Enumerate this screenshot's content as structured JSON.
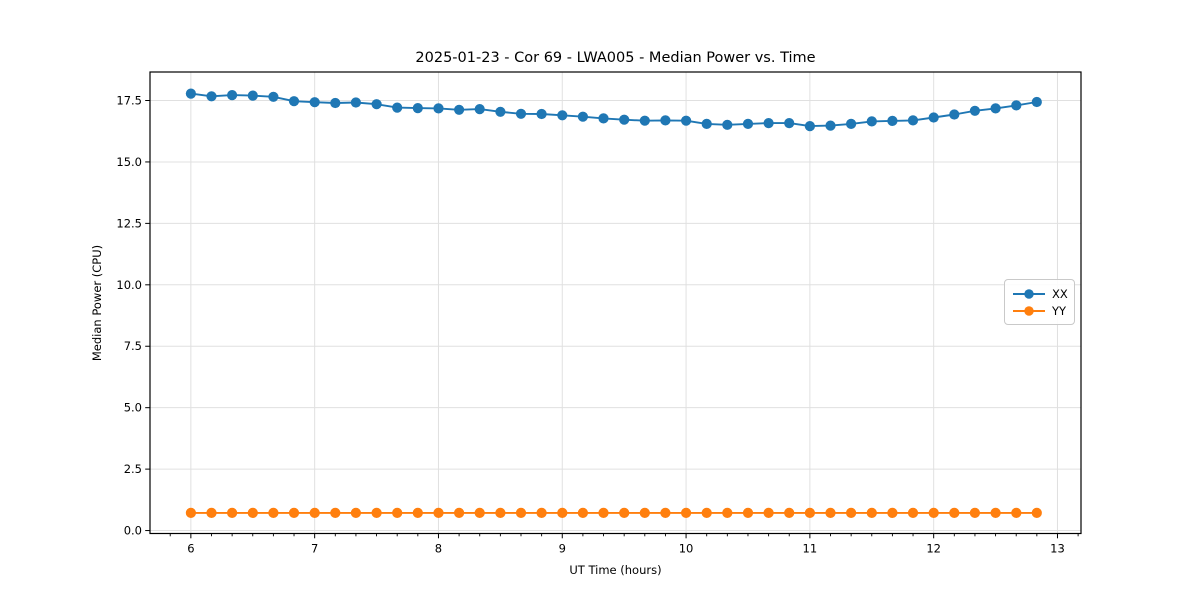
{
  "figure": {
    "title": "2025-01-23 - Cor 69 - LWA005 - Median Power vs. Time"
  },
  "chart_data": {
    "type": "line",
    "title": "2025-01-23 - Cor 69 - LWA005 - Median Power vs. Time",
    "xlabel": "UT Time (hours)",
    "ylabel": "Median Power (CPU)",
    "xlim": [
      5.67,
      13.19
    ],
    "ylim": [
      -0.12,
      18.66
    ],
    "xticks": [
      6,
      7,
      8,
      9,
      10,
      11,
      12,
      13
    ],
    "yticks": [
      0.0,
      2.5,
      5.0,
      7.5,
      10.0,
      12.5,
      15.0,
      17.5
    ],
    "x_minor_step_hours": 0.1667,
    "grid": true,
    "grid_color": "#e0e0e0",
    "legend_position": "center right",
    "marker": "circle",
    "x": [
      6.0,
      6.167,
      6.333,
      6.5,
      6.667,
      6.833,
      7.0,
      7.167,
      7.333,
      7.5,
      7.667,
      7.833,
      8.0,
      8.167,
      8.333,
      8.5,
      8.667,
      8.833,
      9.0,
      9.167,
      9.333,
      9.5,
      9.667,
      9.833,
      10.0,
      10.167,
      10.333,
      10.5,
      10.667,
      10.833,
      11.0,
      11.167,
      11.333,
      11.5,
      11.667,
      11.833,
      12.0,
      12.167,
      12.333,
      12.5,
      12.667,
      12.833
    ],
    "series": [
      {
        "name": "XX",
        "color": "#1f77b4",
        "values": [
          17.78,
          17.67,
          17.72,
          17.7,
          17.65,
          17.47,
          17.43,
          17.4,
          17.42,
          17.35,
          17.21,
          17.19,
          17.18,
          17.12,
          17.15,
          17.04,
          16.96,
          16.95,
          16.9,
          16.84,
          16.77,
          16.72,
          16.68,
          16.69,
          16.68,
          16.55,
          16.51,
          16.55,
          16.58,
          16.58,
          16.46,
          16.48,
          16.55,
          16.65,
          16.67,
          16.69,
          16.81,
          16.93,
          17.08,
          17.18,
          17.3,
          17.44
        ]
      },
      {
        "name": "YY",
        "color": "#ff7f0e",
        "values": [
          0.72,
          0.72,
          0.72,
          0.72,
          0.72,
          0.72,
          0.72,
          0.72,
          0.72,
          0.72,
          0.72,
          0.72,
          0.72,
          0.72,
          0.72,
          0.72,
          0.72,
          0.72,
          0.72,
          0.72,
          0.72,
          0.72,
          0.72,
          0.72,
          0.72,
          0.72,
          0.72,
          0.72,
          0.72,
          0.72,
          0.72,
          0.72,
          0.72,
          0.72,
          0.72,
          0.72,
          0.72,
          0.72,
          0.72,
          0.72,
          0.72,
          0.72
        ]
      }
    ]
  },
  "colors": {
    "xx_line": "#1f77b4",
    "yy_line": "#ff7f0e",
    "grid": "#e0e0e0",
    "spine": "#000000",
    "background": "#ffffff"
  }
}
